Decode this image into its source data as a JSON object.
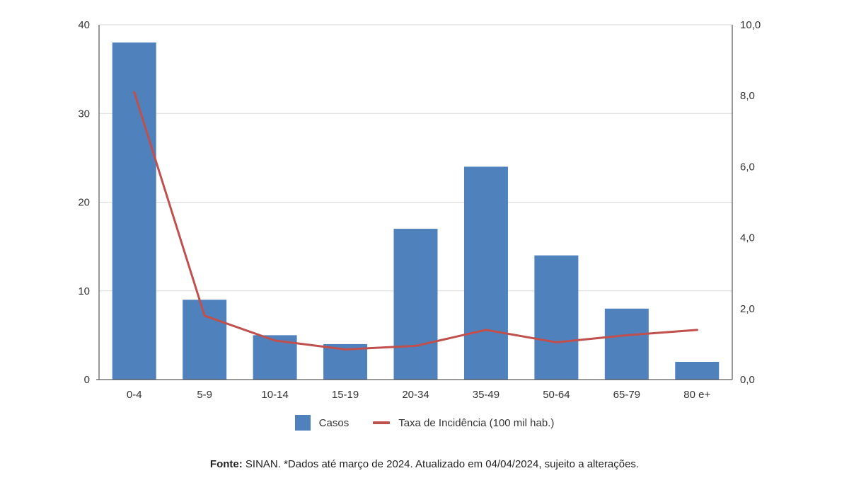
{
  "colors": {
    "bar": "#4f81bd",
    "line": "#c0504d",
    "grid": "#d9d9d9",
    "axis": "#333333",
    "text": "#333333"
  },
  "chart_data": {
    "type": "bar",
    "categories": [
      "0-4",
      "5-9",
      "10-14",
      "15-19",
      "20-34",
      "35-49",
      "50-64",
      "65-79",
      "80 e+"
    ],
    "series": [
      {
        "name": "Casos",
        "type": "bar",
        "axis": "left",
        "values": [
          38,
          9,
          5,
          4,
          17,
          24,
          14,
          8,
          2
        ]
      },
      {
        "name": "Taxa de Incidência (100 mil hab.)",
        "type": "line",
        "axis": "right",
        "values": [
          8.1,
          1.8,
          1.1,
          0.85,
          0.95,
          1.4,
          1.05,
          1.25,
          1.4
        ]
      }
    ],
    "y_left": {
      "min": 0,
      "max": 40,
      "ticks": [
        "0",
        "10",
        "20",
        "30",
        "40"
      ]
    },
    "y_right": {
      "min": 0,
      "max": 10,
      "ticks": [
        "0,0",
        "2,0",
        "4,0",
        "6,0",
        "8,0",
        "10,0"
      ]
    },
    "grid": true,
    "legend_position": "bottom"
  },
  "legend": {
    "bar_label": "Casos",
    "line_label": "Taxa de Incidência (100 mil hab.)"
  },
  "source": {
    "label": "Fonte:",
    "text": " SINAN. *Dados até março de 2024. Atualizado em 04/04/2024, sujeito a alterações."
  }
}
